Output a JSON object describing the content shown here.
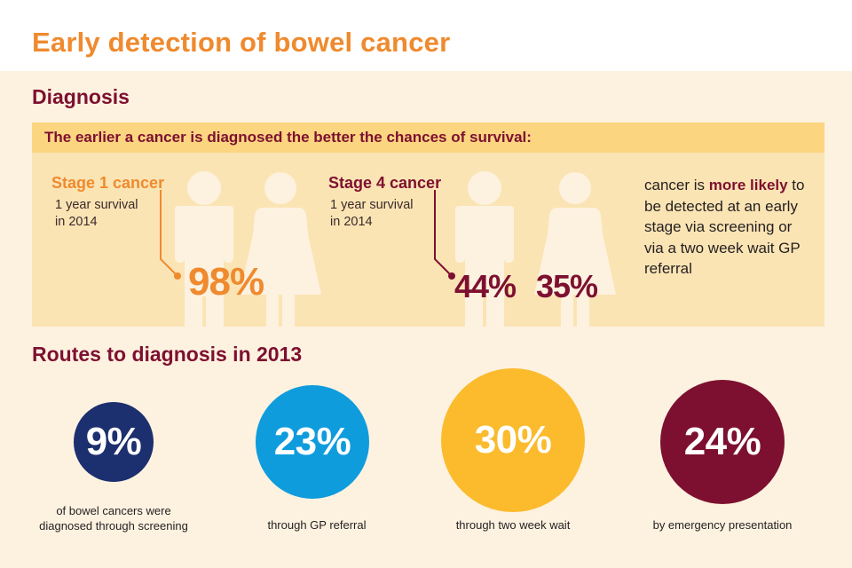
{
  "title": "Early detection of bowel cancer",
  "diagnosis": {
    "heading": "Diagnosis",
    "banner": "The earlier a cancer is diagnosed the better the chances of survival:",
    "stage1": {
      "label": "Stage 1 cancer",
      "note_line1": "1 year survival",
      "note_line2": "in 2014",
      "men_percent": "98%",
      "men_value": 98,
      "women_value": 98
    },
    "stage4": {
      "label": "Stage 4 cancer",
      "note_line1": "1 year survival",
      "note_line2": "in 2014",
      "men_percent": "44%",
      "women_percent": "35%",
      "men_value": 44,
      "women_value": 35
    },
    "side_text": {
      "before": "cancer is ",
      "emph": "more likely",
      "after": " to be detected at an early stage via screening or via a two week wait GP referral"
    }
  },
  "routes": {
    "heading": "Routes to diagnosis in 2013",
    "items": [
      {
        "percent": "9%",
        "value": 9,
        "caption_line1": "of bowel cancers were",
        "caption_line2": "diagnosed through screening",
        "color": "#1c2f6e"
      },
      {
        "percent": "23%",
        "value": 23,
        "caption_line1": "through GP referral",
        "caption_line2": "",
        "color": "#0f9cdd"
      },
      {
        "percent": "30%",
        "value": 30,
        "caption_line1": "through two week wait",
        "caption_line2": "",
        "color": "#fbbb2d"
      },
      {
        "percent": "24%",
        "value": 24,
        "caption_line1": "by emergency presentation",
        "caption_line2": "",
        "color": "#7d1030"
      }
    ]
  },
  "colors": {
    "orange": "#ef8a2e",
    "maroon": "#7d1030",
    "figure_fill": "#fbbb2d",
    "figure_empty": "#fdf2e0",
    "background": "#fdf2e0",
    "panel": "#fbe4b4",
    "banner": "#fbd580"
  }
}
